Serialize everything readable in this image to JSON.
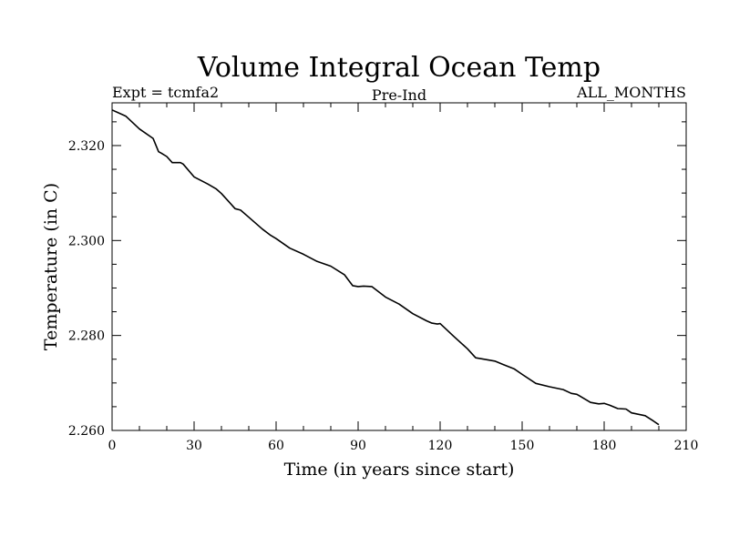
{
  "chart_data": {
    "type": "line",
    "title": "Volume Integral Ocean Temp",
    "subtitle_left": "Expt = tcmfa2",
    "subtitle_center": "Pre-Ind",
    "subtitle_right": "ALL_MONTHS",
    "xlabel": "Time (in years since start)",
    "ylabel": "Temperature (in C)",
    "xlim": [
      0,
      210
    ],
    "ylim": [
      2.26,
      2.329
    ],
    "xticks": [
      0,
      30,
      60,
      90,
      120,
      150,
      180,
      210
    ],
    "yticks": [
      2.26,
      2.28,
      2.3,
      2.32
    ],
    "xtick_labels": [
      "0",
      "30",
      "60",
      "90",
      "120",
      "150",
      "180",
      "210"
    ],
    "ytick_labels": [
      "2.260",
      "2.280",
      "2.300",
      "2.320"
    ],
    "series": [
      {
        "name": "Volume Integral Ocean Temp",
        "color": "#000000",
        "x": [
          0,
          5,
          10,
          15,
          17,
          18,
          20,
          22,
          25,
          26,
          30,
          35,
          38,
          40,
          45,
          47,
          50,
          55,
          58,
          60,
          65,
          70,
          75,
          80,
          85,
          88,
          90,
          92,
          95,
          100,
          105,
          110,
          115,
          117,
          119,
          120,
          125,
          130,
          133,
          135,
          140,
          143,
          147,
          150,
          155,
          160,
          165,
          168,
          170,
          175,
          178,
          180,
          182,
          185,
          188,
          190,
          195,
          198,
          200
        ],
        "values": [
          2.3275,
          2.3262,
          2.3235,
          2.3215,
          2.3187,
          2.3184,
          2.3177,
          2.3164,
          2.3164,
          2.3161,
          2.3134,
          2.3119,
          2.3109,
          2.3099,
          2.3067,
          2.3064,
          2.3049,
          2.3024,
          2.3011,
          2.3004,
          2.2984,
          2.2971,
          2.2956,
          2.2946,
          2.2928,
          2.2905,
          2.2903,
          2.2904,
          2.2903,
          2.2881,
          2.2866,
          2.2846,
          2.2831,
          2.2826,
          2.2824,
          2.2825,
          2.2798,
          2.2772,
          2.2753,
          2.2751,
          2.2746,
          2.2739,
          2.273,
          2.2718,
          2.2699,
          2.2692,
          2.2686,
          2.2678,
          2.2676,
          2.2659,
          2.2656,
          2.2657,
          2.2653,
          2.2646,
          2.2645,
          2.2637,
          2.2631,
          2.262,
          2.2612
        ]
      }
    ]
  }
}
